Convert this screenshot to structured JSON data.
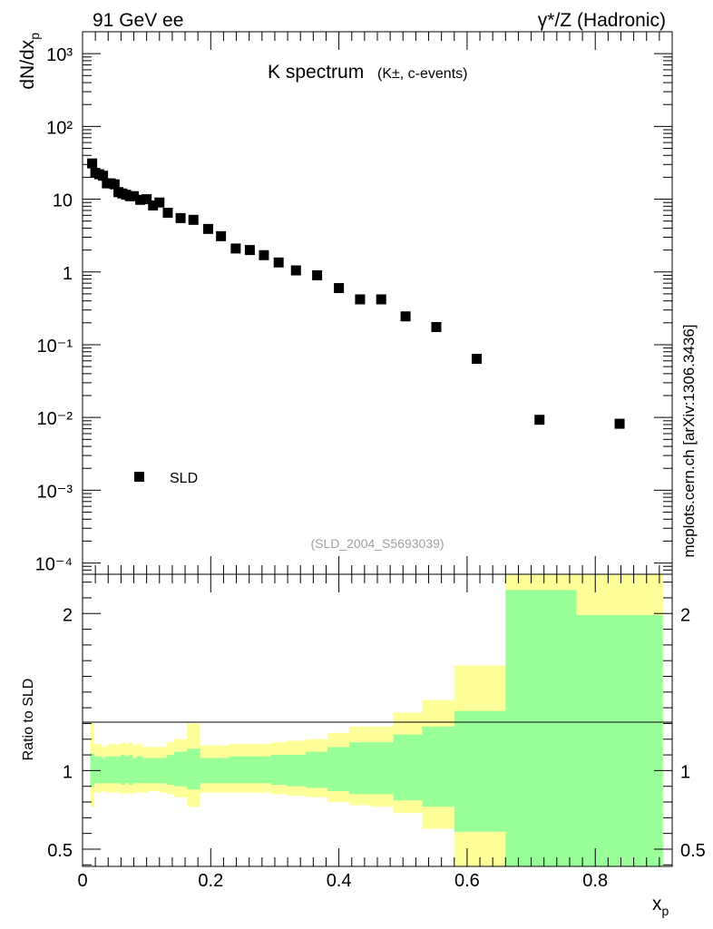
{
  "header": {
    "left": "91 GeV ee",
    "right": "γ*/Z (Hadronic)"
  },
  "side_label": "mcplots.cern.ch [arXiv:1306.3436]",
  "ref_label": "(SLD_2004_S5693039)",
  "colors": {
    "marker": "#000000",
    "band_outer": "#ffff99",
    "band_inner": "#99ff99",
    "ref_text": "#a0a0a0"
  },
  "chart_data": [
    {
      "type": "scatter",
      "title": "K spectrum",
      "title_sub": "(K±, c-events)",
      "ylabel": "dN/dx_p",
      "yscale": "log",
      "ylim": [
        7e-05,
        2000
      ],
      "xlim": [
        0,
        0.92
      ],
      "y_tick_labels": [
        "10⁻⁴",
        "10⁻³",
        "10⁻²",
        "10⁻¹",
        "1",
        "10",
        "10²",
        "10³"
      ],
      "legend": {
        "label": "SLD",
        "position": "bottom-left"
      },
      "series": [
        {
          "name": "SLD",
          "x": [
            0.015,
            0.02,
            0.026,
            0.032,
            0.038,
            0.044,
            0.05,
            0.056,
            0.062,
            0.068,
            0.074,
            0.08,
            0.09,
            0.1,
            0.11,
            0.12,
            0.133,
            0.153,
            0.173,
            0.196,
            0.216,
            0.239,
            0.261,
            0.283,
            0.306,
            0.333,
            0.366,
            0.4,
            0.433,
            0.466,
            0.504,
            0.552,
            0.615,
            0.713,
            0.838
          ],
          "y": [
            31,
            23,
            22,
            21,
            16.5,
            16.5,
            16,
            12.5,
            12,
            11.5,
            11,
            11,
            9.8,
            10,
            8.2,
            9,
            6.5,
            5.5,
            5.2,
            3.9,
            3.1,
            2.1,
            2.0,
            1.7,
            1.35,
            1.05,
            0.9,
            0.6,
            0.42,
            0.42,
            0.245,
            0.175,
            0.064,
            0.0093,
            0.0082
          ]
        }
      ]
    },
    {
      "type": "area",
      "ylabel": "Ratio to SLD",
      "xlabel": "x_p",
      "ylim": [
        0.39,
        2.25
      ],
      "xlim": [
        0,
        0.92
      ],
      "x_ticks": [
        0,
        0.2,
        0.4,
        0.6,
        0.8
      ],
      "y_ticks": [
        0.5,
        1,
        2
      ],
      "reference_line": 1,
      "bins": {
        "edges": [
          0.012,
          0.018,
          0.024,
          0.03,
          0.036,
          0.042,
          0.048,
          0.054,
          0.06,
          0.066,
          0.072,
          0.078,
          0.084,
          0.093,
          0.102,
          0.111,
          0.12,
          0.132,
          0.143,
          0.163,
          0.183,
          0.208,
          0.228,
          0.25,
          0.272,
          0.294,
          0.318,
          0.348,
          0.382,
          0.416,
          0.45,
          0.485,
          0.53,
          0.58,
          0.66,
          0.77,
          0.905
        ],
        "outer_hi": [
          1.3,
          1.17,
          1.17,
          1.15,
          1.16,
          1.17,
          1.17,
          1.17,
          1.18,
          1.17,
          1.18,
          1.16,
          1.17,
          1.15,
          1.15,
          1.15,
          1.15,
          1.18,
          1.2,
          1.3,
          1.16,
          1.16,
          1.17,
          1.17,
          1.17,
          1.18,
          1.19,
          1.2,
          1.24,
          1.28,
          1.28,
          1.37,
          1.45,
          1.67,
          2.35,
          2.35
        ],
        "inner_hi": [
          1.11,
          1.09,
          1.09,
          1.08,
          1.09,
          1.09,
          1.09,
          1.09,
          1.1,
          1.09,
          1.1,
          1.08,
          1.09,
          1.08,
          1.08,
          1.08,
          1.08,
          1.1,
          1.12,
          1.14,
          1.08,
          1.08,
          1.09,
          1.09,
          1.09,
          1.1,
          1.1,
          1.12,
          1.15,
          1.18,
          1.18,
          1.23,
          1.28,
          1.38,
          2.15,
          1.99
        ],
        "inner_lo": [
          0.9,
          0.92,
          0.92,
          0.92,
          0.92,
          0.92,
          0.92,
          0.92,
          0.91,
          0.92,
          0.91,
          0.92,
          0.92,
          0.92,
          0.92,
          0.92,
          0.92,
          0.91,
          0.9,
          0.88,
          0.92,
          0.92,
          0.92,
          0.92,
          0.92,
          0.91,
          0.9,
          0.89,
          0.87,
          0.85,
          0.85,
          0.81,
          0.77,
          0.61,
          0.3,
          0.3
        ],
        "outer_lo": [
          0.77,
          0.86,
          0.86,
          0.87,
          0.86,
          0.86,
          0.86,
          0.86,
          0.85,
          0.86,
          0.85,
          0.86,
          0.86,
          0.86,
          0.87,
          0.87,
          0.86,
          0.85,
          0.83,
          0.77,
          0.86,
          0.86,
          0.86,
          0.86,
          0.86,
          0.85,
          0.84,
          0.83,
          0.8,
          0.78,
          0.77,
          0.73,
          0.63,
          0.3,
          0.3,
          0.3
        ]
      }
    }
  ]
}
